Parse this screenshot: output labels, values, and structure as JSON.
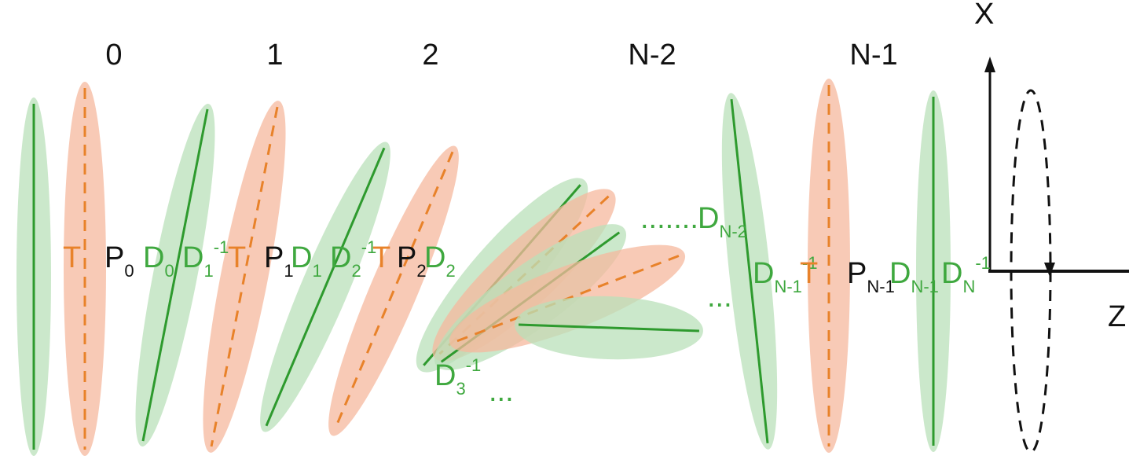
{
  "positions": [
    "0",
    "1",
    "2",
    "N-2",
    "N-1"
  ],
  "axes": {
    "x": "X",
    "z": "Z"
  },
  "labels": [
    {
      "base": "T"
    },
    {
      "base": "P",
      "sub": "0"
    },
    {
      "base": "D",
      "sub": "0"
    },
    {
      "base": "D",
      "sub": "1",
      "sup": "-1"
    },
    {
      "base": "T"
    },
    {
      "base": "P",
      "sub": "1"
    },
    {
      "base": "D",
      "sub": "1"
    },
    {
      "base": "D",
      "sub": "2",
      "sup": "-1"
    },
    {
      "base": "T"
    },
    {
      "base": "P",
      "sub": "2"
    },
    {
      "base": "D",
      "sub": "2"
    },
    {
      "base": "D",
      "sub": "3",
      "sup": "-1"
    },
    {
      "base": "..."
    },
    {
      "base": "......."
    },
    {
      "base": "D",
      "sub": "N-2"
    },
    {
      "base": "..."
    },
    {
      "base": "D",
      "sub": "N-1",
      "sup": "-1"
    },
    {
      "base": "T"
    },
    {
      "base": "P",
      "sub": "N-1"
    },
    {
      "base": "D",
      "sub": "N-1"
    },
    {
      "base": "D",
      "sub": "N",
      "sup": "-1"
    }
  ]
}
